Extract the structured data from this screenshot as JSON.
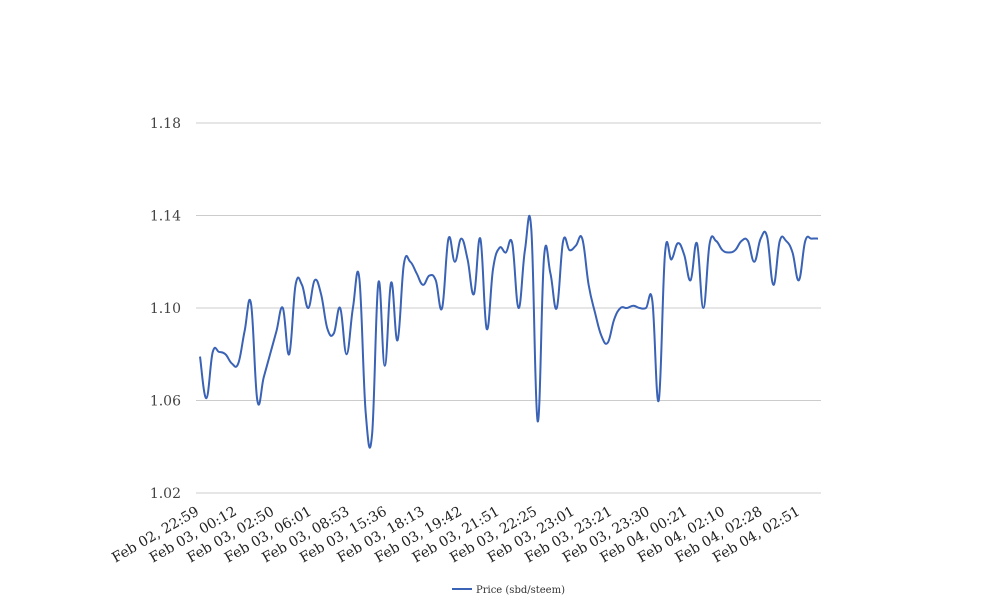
{
  "chart_data": {
    "type": "line",
    "title": "",
    "xlabel": "",
    "ylabel": "",
    "ylim": [
      1.02,
      1.18
    ],
    "yticks": [
      "1.02",
      "1.06",
      "1.10",
      "1.14",
      "1.18"
    ],
    "xticks": [
      "Feb 02, 22:59",
      "Feb 03, 00:12",
      "Feb 03, 02:50",
      "Feb 03, 06:01",
      "Feb 03, 08:53",
      "Feb 03, 15:36",
      "Feb 03, 18:13",
      "Feb 03, 19:42",
      "Feb 03, 21:51",
      "Feb 03, 22:25",
      "Feb 03, 23:01",
      "Feb 03, 23:21",
      "Feb 03, 23:30",
      "Feb 04, 00:21",
      "Feb 04, 02:10",
      "Feb 04, 02:28",
      "Feb 04, 02:51"
    ],
    "grid": true,
    "legend_position": "bottom-center",
    "colors": {
      "series": "#3a62b5",
      "grid": "#cccccc"
    },
    "series": [
      {
        "name": "Price (sbd/steem)",
        "values": [
          1.079,
          1.061,
          1.081,
          1.081,
          1.08,
          1.076,
          1.076,
          1.09,
          1.102,
          1.06,
          1.07,
          1.08,
          1.09,
          1.1,
          1.08,
          1.11,
          1.11,
          1.1,
          1.112,
          1.106,
          1.091,
          1.089,
          1.1,
          1.08,
          1.1,
          1.113,
          1.055,
          1.045,
          1.111,
          1.075,
          1.111,
          1.086,
          1.119,
          1.12,
          1.115,
          1.11,
          1.114,
          1.112,
          1.1,
          1.13,
          1.12,
          1.13,
          1.121,
          1.106,
          1.13,
          1.091,
          1.117,
          1.126,
          1.124,
          1.128,
          1.1,
          1.125,
          1.134,
          1.051,
          1.122,
          1.115,
          1.1,
          1.129,
          1.125,
          1.127,
          1.13,
          1.11,
          1.098,
          1.088,
          1.085,
          1.095,
          1.1,
          1.1,
          1.101,
          1.1,
          1.1,
          1.103,
          1.06,
          1.124,
          1.121,
          1.128,
          1.123,
          1.112,
          1.128,
          1.1,
          1.128,
          1.129,
          1.125,
          1.124,
          1.125,
          1.129,
          1.129,
          1.12,
          1.13,
          1.131,
          1.11,
          1.129,
          1.129,
          1.124,
          1.112,
          1.129,
          1.13,
          1.13
        ]
      }
    ]
  }
}
